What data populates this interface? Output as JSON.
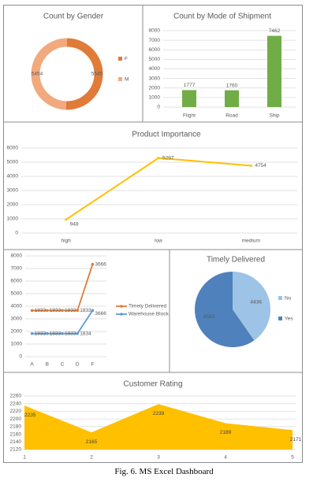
{
  "caption": "Fig. 6.  MS Excel Dashboard",
  "colors": {
    "orange": "#e07b39",
    "peach": "#f2a97e",
    "green": "#70ad47",
    "yellow": "#ffc000",
    "pie_light": "#9dc3e6",
    "pie_dark": "#4f81bd",
    "blue": "#5b9bd5",
    "grid": "#d9d9d9",
    "text": "#595959"
  },
  "chart_data": [
    {
      "type": "pie",
      "title": "Count by Gender",
      "categories": [
        "F",
        "M"
      ],
      "values": [
        5545,
        5454
      ],
      "labels": [
        "5545",
        "5454"
      ],
      "legend": "right"
    },
    {
      "type": "bar",
      "title": "Count by Mode of Shipment",
      "categories": [
        "Flight",
        "Road",
        "Ship"
      ],
      "values": [
        1777,
        1760,
        7462
      ],
      "ylim": [
        0,
        8000
      ],
      "yticks": [
        "0",
        "1000",
        "2000",
        "3000",
        "4000",
        "5000",
        "6000",
        "7000",
        "8000"
      ],
      "grid": true
    },
    {
      "type": "line",
      "title": "Product Importance",
      "categories": [
        "high",
        "low",
        "medium"
      ],
      "values": [
        948,
        5297,
        4754
      ],
      "ylim": [
        0,
        6000
      ],
      "yticks": [
        "0",
        "1000",
        "2000",
        "3000",
        "4000",
        "5000",
        "6000"
      ],
      "grid": true
    },
    {
      "type": "line",
      "title": "",
      "categories": [
        "A",
        "B",
        "C",
        "D",
        "F"
      ],
      "series": [
        {
          "name": "Timely Delivered",
          "values": [
            3666,
            3666,
            3666,
            3666,
            7332
          ],
          "labels": [
            "1833",
            "1833",
            "1833",
            "1833",
            "3666"
          ]
        },
        {
          "name": "Warehouse Block",
          "values": [
            1833,
            1833,
            1833,
            1834,
            3666
          ],
          "labels": [
            "1833",
            "1833",
            "1833",
            "1834",
            "3666"
          ]
        }
      ],
      "ylim": [
        0,
        8000
      ],
      "yticks": [
        "0",
        "1000",
        "2000",
        "3000",
        "4000",
        "5000",
        "6000",
        "7000",
        "8000"
      ],
      "legend": "right",
      "grid": true
    },
    {
      "type": "pie",
      "title": "Timely Delivered",
      "categories": [
        "No",
        "Yes"
      ],
      "values": [
        4436,
        6563
      ],
      "labels": [
        "4436",
        "6563"
      ],
      "legend": "right"
    },
    {
      "type": "area",
      "title": "Customer Rating",
      "categories": [
        "1",
        "2",
        "3",
        "4",
        "5"
      ],
      "values": [
        2235,
        2165,
        2239,
        2189,
        2171
      ],
      "ylim": [
        2120,
        2260
      ],
      "yticks": [
        "2120",
        "2140",
        "2160",
        "2180",
        "2200",
        "2220",
        "2240",
        "2260"
      ],
      "grid": true
    }
  ]
}
